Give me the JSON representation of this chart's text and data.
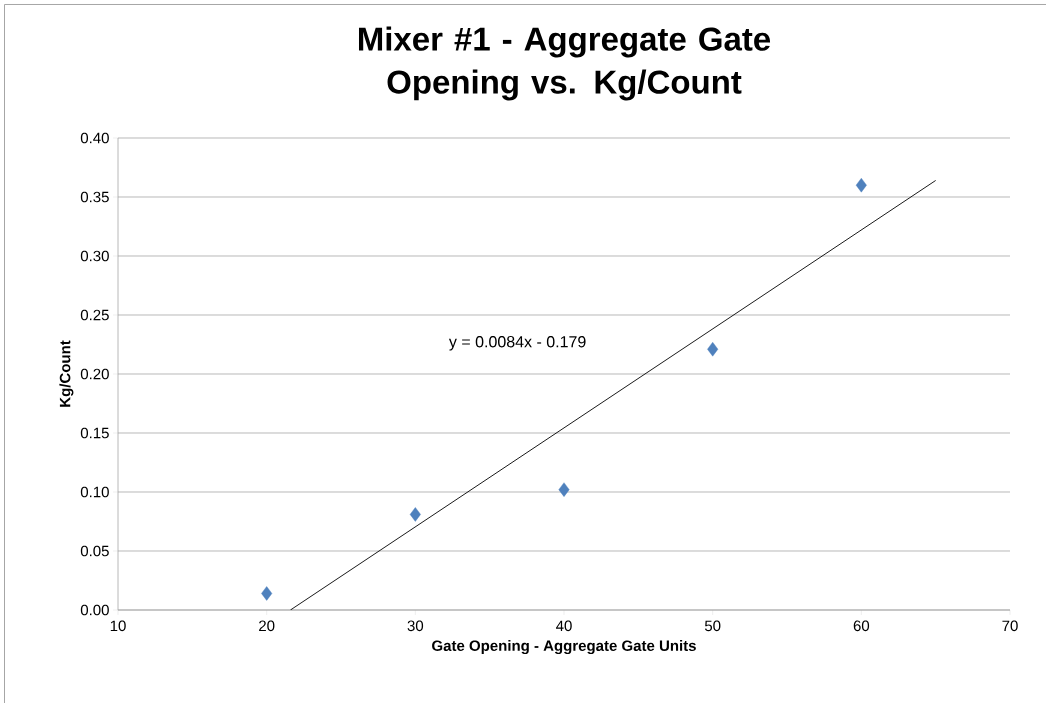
{
  "chart_data": {
    "type": "scatter",
    "title": "Mixer #1 - Aggregate Gate Opening vs. Kg/Count",
    "xlabel": "Gate Opening - Aggregate Gate Units",
    "ylabel": "Kg/Count",
    "xlim": [
      10,
      70
    ],
    "xticks": [
      10,
      20,
      30,
      40,
      50,
      60,
      70
    ],
    "ylim": [
      0,
      0.4
    ],
    "yticks": [
      {
        "value": 0,
        "label": "0.00"
      },
      {
        "value": 0.05,
        "label": "0.05"
      },
      {
        "value": 0.1,
        "label": "0.10"
      },
      {
        "value": 0.15,
        "label": "0.15"
      },
      {
        "value": 0.2,
        "label": "0.20"
      },
      {
        "value": 0.25,
        "label": "0.25"
      },
      {
        "value": 0.3,
        "label": "0.30"
      },
      {
        "value": 0.35,
        "label": "0.35"
      },
      {
        "value": 0.4,
        "label": "0.40"
      }
    ],
    "grid": "y",
    "series": [
      {
        "type": "scatter",
        "color": "#4f81bd",
        "marker": "diamond",
        "x": [
          20,
          30,
          40,
          50,
          60
        ],
        "values": [
          0.014,
          0.081,
          0.102,
          0.221,
          0.36
        ]
      },
      {
        "type": "line",
        "color": "#000000",
        "marker": "none",
        "line_style": "solid",
        "x": [
          21.6,
          65
        ],
        "values": [
          0.0,
          0.364
        ]
      }
    ],
    "annotations": [
      "y = 0.0084x - 0.179"
    ]
  }
}
